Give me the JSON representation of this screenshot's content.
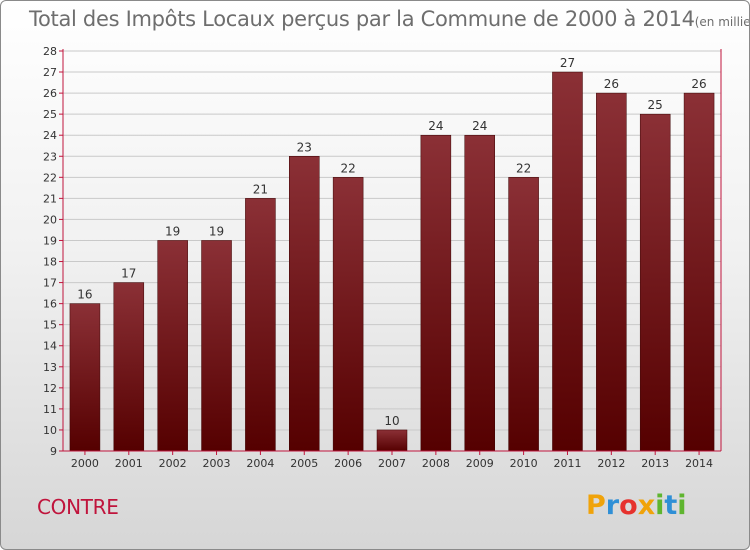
{
  "title": {
    "main": "Total des Impôts Locaux perçus par la Commune de 2000 à 2014",
    "unit": "(en milliers d'€)"
  },
  "commune": "CONTRE",
  "logo": {
    "letters": [
      "P",
      "r",
      "o",
      "x",
      "i",
      "t",
      "i"
    ],
    "colors": [
      "#f0a30a",
      "#2f8fd6",
      "#e6322e",
      "#f0a30a",
      "#5fb52f",
      "#2f8fd6",
      "#5fb52f"
    ]
  },
  "colors": {
    "bar_top": "#8b3036",
    "bar_bottom": "#550000",
    "axis": "#c0143c",
    "grid": "#c9c9c9",
    "commune": "#c0143c"
  },
  "chart_data": {
    "type": "bar",
    "title": "Total des Impôts Locaux perçus par la Commune de 2000 à 2014",
    "xlabel": "",
    "ylabel": "",
    "ylim": [
      9,
      28
    ],
    "yticks": [
      9,
      10,
      11,
      12,
      13,
      14,
      15,
      16,
      17,
      18,
      19,
      20,
      21,
      22,
      23,
      24,
      25,
      26,
      27,
      28
    ],
    "categories": [
      "2000",
      "2001",
      "2002",
      "2003",
      "2004",
      "2005",
      "2006",
      "2007",
      "2008",
      "2009",
      "2010",
      "2011",
      "2012",
      "2013",
      "2014"
    ],
    "values": [
      16,
      17,
      19,
      19,
      21,
      23,
      22,
      10,
      24,
      24,
      22,
      27,
      26,
      25,
      26
    ],
    "grid": true
  }
}
